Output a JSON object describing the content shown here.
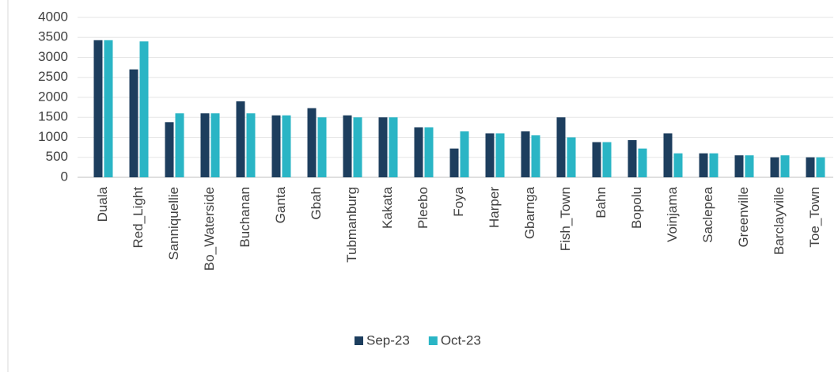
{
  "chart_data": {
    "type": "bar",
    "categories": [
      "Duala",
      "Red_Light",
      "Sanniquellie",
      "Bo_Waterside",
      "Buchanan",
      "Ganta",
      "Gbah",
      "Tubmanburg",
      "Kakata",
      "Pleebo",
      "Foya",
      "Harper",
      "Gbarnga",
      "Fish_Town",
      "Bahn",
      "Bopolu",
      "Voinjama",
      "Saclepea",
      "Greenville",
      "Barclayville",
      "Toe_Town"
    ],
    "series": [
      {
        "name": "Sep-23",
        "color": "#1d3e5e",
        "values": [
          3430,
          2700,
          1380,
          1600,
          1900,
          1550,
          1730,
          1550,
          1500,
          1250,
          720,
          1100,
          1150,
          1500,
          880,
          930,
          1100,
          600,
          550,
          500,
          500
        ]
      },
      {
        "name": "Oct-23",
        "color": "#2ab5c5",
        "values": [
          3430,
          3400,
          1600,
          1600,
          1600,
          1550,
          1500,
          1500,
          1500,
          1250,
          1150,
          1100,
          1050,
          1000,
          880,
          720,
          600,
          600,
          550,
          550,
          500
        ]
      }
    ],
    "ylim": [
      0,
      4000
    ],
    "yticks": [
      0,
      500,
      1000,
      1500,
      2000,
      2500,
      3000,
      3500,
      4000
    ],
    "grid": true,
    "legend": "bottom"
  }
}
